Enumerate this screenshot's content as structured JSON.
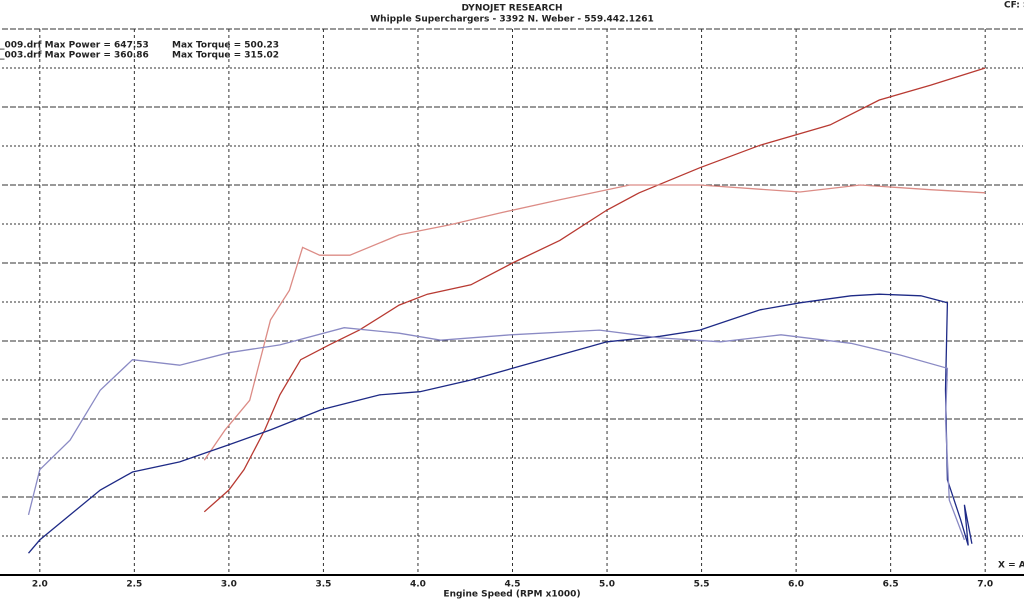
{
  "chart_data": {
    "type": "line",
    "title": "DYNOJET RESEARCH",
    "subtitle": "Whipple Superchargers - 3392 N. Weber - 559.442.1261",
    "x_label": "Engine Speed (RPM x1000)",
    "annotations": [
      "_009.drf Max Power = 647.53",
      "Max Torque = 500.23",
      "_003.drf Max Power = 360.86",
      "Max Torque = 315.02",
      "CF: S",
      "X = A"
    ],
    "xlim": [
      1.8,
      7.2
    ],
    "xticks": [
      {
        "value": 2,
        "label": "2.0"
      },
      2.5,
      {
        "value": 3,
        "label": "3.0"
      },
      3.5,
      {
        "value": 4,
        "label": "4.0"
      },
      4.5,
      {
        "value": 5,
        "label": "5.0"
      },
      5.5,
      {
        "value": 6,
        "label": "6.0"
      },
      6.5,
      {
        "value": 7,
        "label": "7.0"
      }
    ],
    "ylim": [
      0,
      700
    ],
    "yticks": [
      0,
      50,
      100,
      150,
      200,
      250,
      300,
      350,
      400,
      450,
      500,
      550,
      600,
      650,
      700
    ],
    "grid": true,
    "series": [
      {
        "color": "#b83a32",
        "x": [
          2.87,
          3.0,
          3.08,
          3.19,
          3.27,
          3.38,
          3.53,
          3.69,
          3.9,
          4.05,
          4.28,
          4.5,
          4.75,
          5.0,
          5.17,
          5.49,
          5.81,
          6.18,
          6.44,
          6.71,
          7.0
        ],
        "values": [
          81,
          109,
          135,
          186,
          231,
          276,
          295,
          314,
          346,
          360,
          372,
          400,
          429,
          468,
          490,
          522,
          551,
          577,
          609,
          628,
          650
        ]
      },
      {
        "color": "#dc8c86",
        "x": [
          2.87,
          2.98,
          3.11,
          3.22,
          3.32,
          3.39,
          3.48,
          3.64,
          3.9,
          4.17,
          4.43,
          4.75,
          5.12,
          5.49,
          6.02,
          6.34,
          6.71,
          7.0
        ],
        "values": [
          147,
          186,
          224,
          327,
          365,
          420,
          410,
          410,
          436,
          449,
          464,
          481,
          500,
          500,
          491,
          500,
          494,
          490
        ]
      },
      {
        "color": "#1e2a86",
        "x": [
          1.94,
          2.0,
          2.16,
          2.32,
          2.49,
          2.74,
          3.0,
          3.22,
          3.49,
          3.8,
          4.01,
          4.28,
          4.5,
          4.75,
          5.0,
          5.28,
          5.49,
          5.81,
          6.02,
          6.29,
          6.44,
          6.66,
          6.8,
          6.79,
          6.8,
          6.87,
          6.91,
          6.89,
          6.93
        ],
        "values": [
          28,
          45,
          77,
          109,
          132,
          145,
          167,
          186,
          212,
          231,
          235,
          250,
          265,
          282,
          299,
          306,
          314,
          340,
          349,
          358,
          360,
          358,
          349,
          237,
          122,
          71,
          38,
          90,
          40
        ]
      },
      {
        "color": "#8a8ac4",
        "x": [
          1.94,
          2.0,
          2.16,
          2.32,
          2.49,
          2.74,
          3.0,
          3.27,
          3.61,
          3.9,
          4.12,
          4.49,
          4.96,
          5.28,
          5.6,
          5.92,
          6.29,
          6.55,
          6.8,
          6.79,
          6.81,
          6.89
        ],
        "values": [
          77,
          135,
          173,
          237,
          276,
          269,
          285,
          295,
          317,
          310,
          301,
          308,
          314,
          304,
          299,
          308,
          297,
          282,
          265,
          199,
          96,
          45
        ]
      }
    ]
  }
}
